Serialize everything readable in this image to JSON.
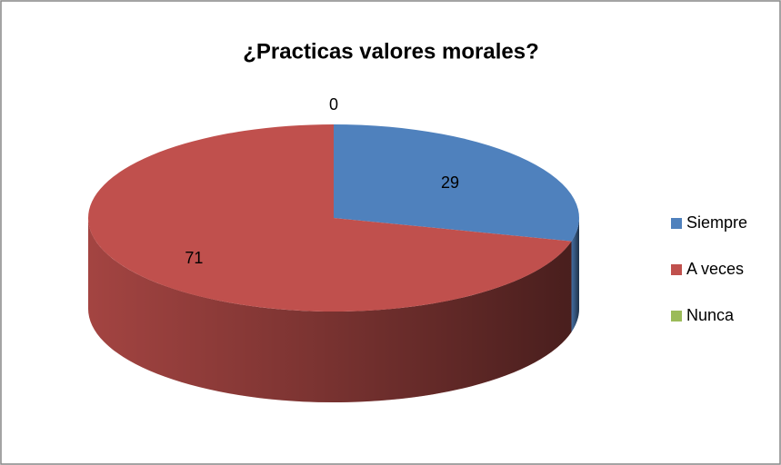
{
  "chart_data": {
    "type": "pie",
    "title": "¿Practicas valores morales?",
    "categories": [
      "Siempre",
      "A veces",
      "Nunca"
    ],
    "values": [
      29,
      71,
      0
    ],
    "colors": [
      "#4f81bd",
      "#c0504d",
      "#9bbb59"
    ],
    "legend": "right"
  }
}
